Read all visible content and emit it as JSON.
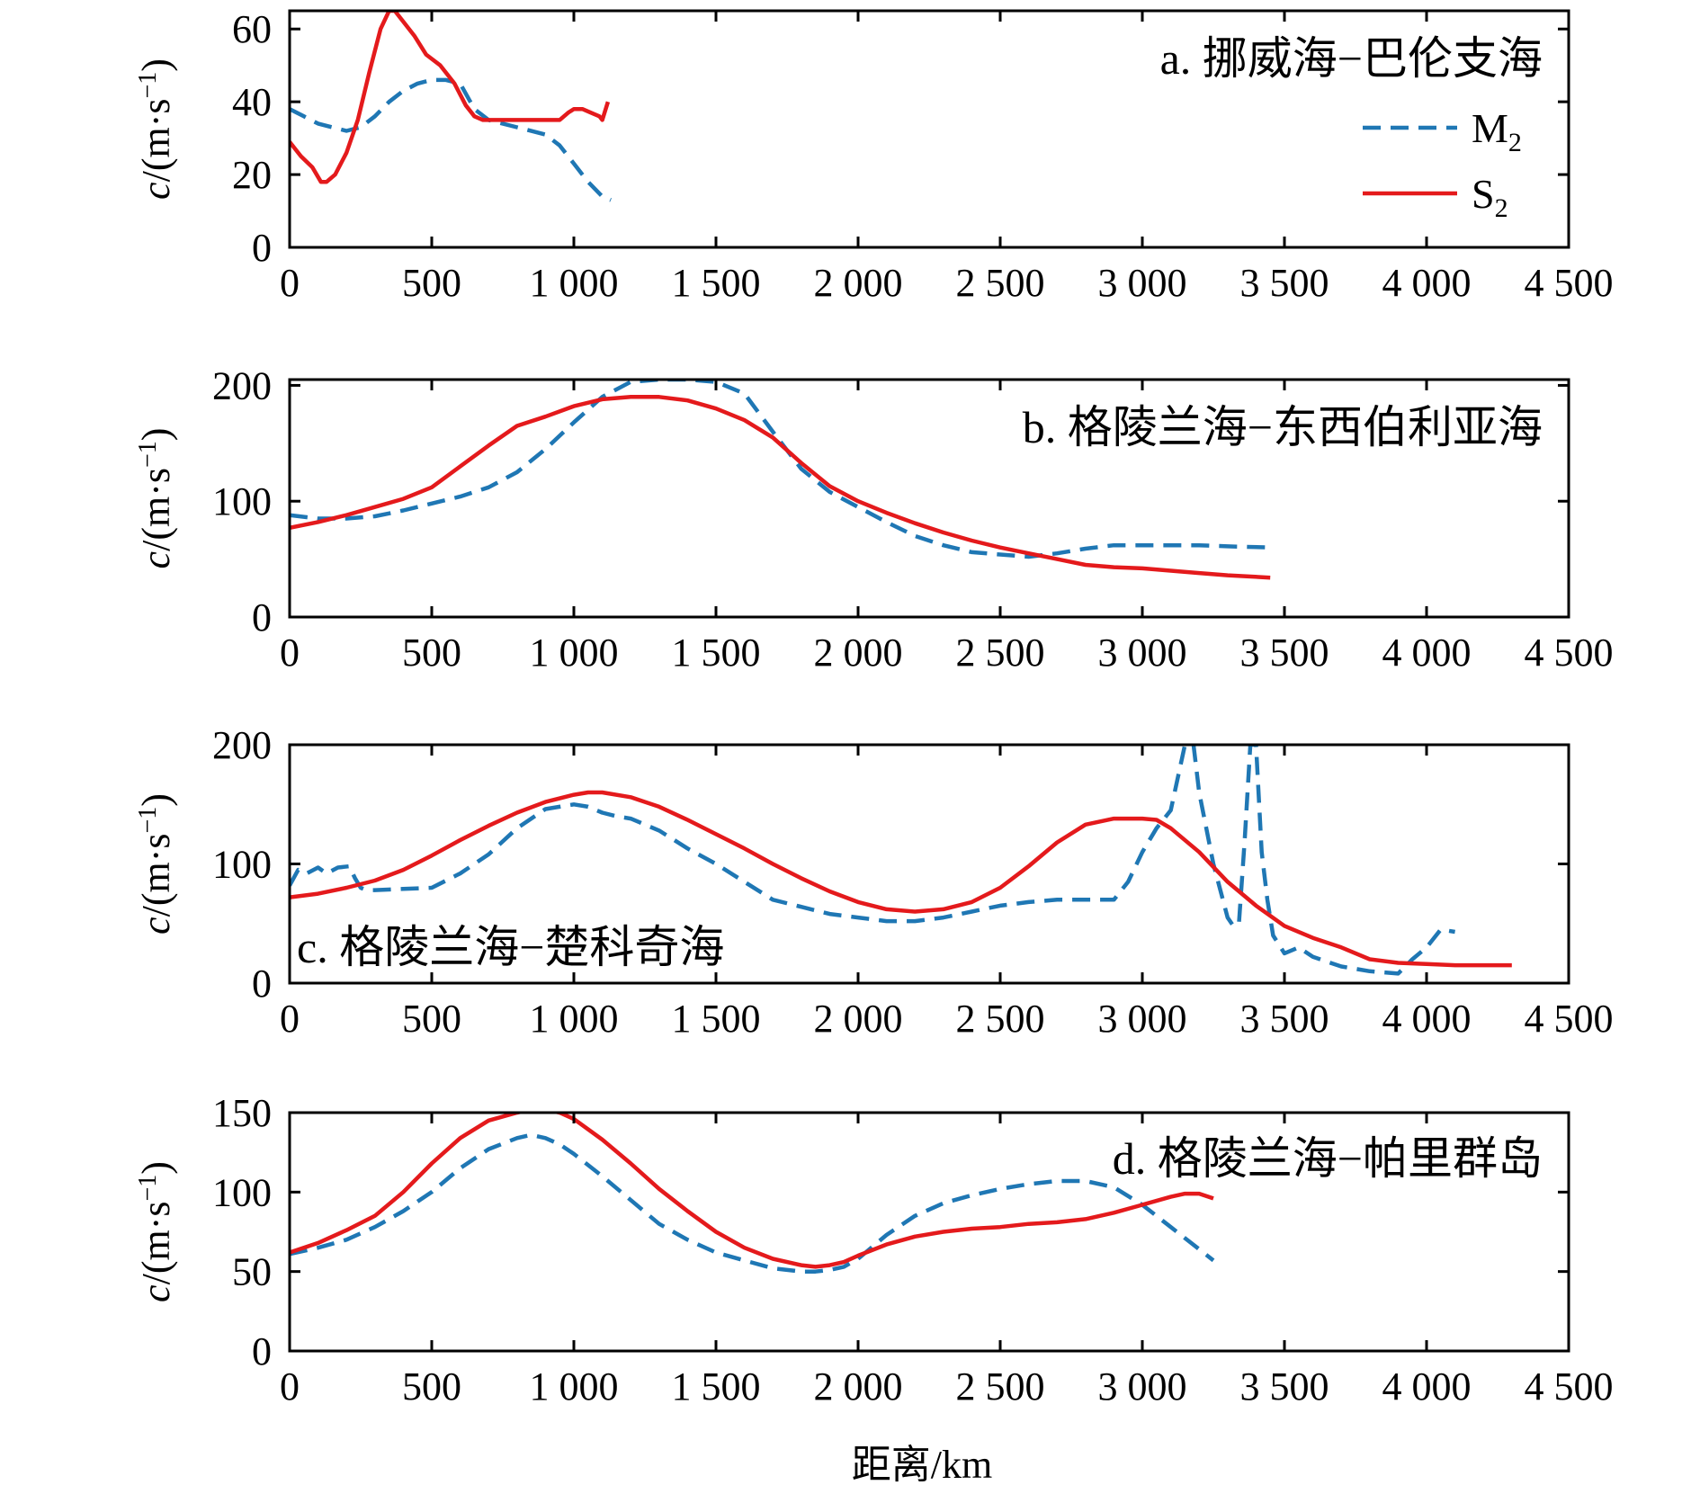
{
  "legend": {
    "placement": "top-right of panel a",
    "entries": [
      {
        "id": "M2",
        "base": "M",
        "sub": "2",
        "color": "#1f77b4",
        "dash": "dashed"
      },
      {
        "id": "S2",
        "base": "S",
        "sub": "2",
        "color": "#e41a1c",
        "dash": "solid"
      }
    ]
  },
  "shared": {
    "ylabel_italic": "c",
    "ylabel_text": "/(m·s",
    "ylabel_sup": "−1",
    "ylabel_close": ")",
    "xlabel": "距离/km"
  },
  "chart_data": [
    {
      "type": "line",
      "title": "a. 挪威海−巴伦支海",
      "xlim": [
        0,
        4500
      ],
      "ylim": [
        0,
        65
      ],
      "xticks": [
        0,
        500,
        1000,
        1500,
        2000,
        2500,
        3000,
        3500,
        4000,
        4500
      ],
      "xtick_labels": [
        "0",
        "500",
        "1 000",
        "1 500",
        "2 000",
        "2 500",
        "3 000",
        "3 500",
        "4 000",
        "4 500"
      ],
      "yticks": [
        0,
        20,
        40,
        60
      ],
      "ytick_labels": [
        "0",
        "20",
        "40",
        "60"
      ],
      "series": [
        {
          "name": "M2",
          "x": [
            0,
            50,
            100,
            150,
            200,
            250,
            300,
            350,
            400,
            450,
            500,
            550,
            600,
            650,
            700,
            800,
            900,
            950,
            1000,
            1050,
            1100,
            1130
          ],
          "y": [
            38,
            36,
            34,
            33,
            32,
            33,
            36,
            40,
            43,
            45,
            46,
            46,
            45,
            38,
            35,
            33,
            31,
            28,
            23,
            18,
            14,
            13
          ]
        },
        {
          "name": "S2",
          "x": [
            0,
            40,
            80,
            110,
            130,
            160,
            200,
            240,
            280,
            320,
            350,
            370,
            400,
            440,
            480,
            530,
            580,
            620,
            650,
            680,
            720,
            800,
            900,
            950,
            980,
            1000,
            1030,
            1060,
            1090,
            1100,
            1120
          ],
          "y": [
            29,
            25,
            22,
            18,
            18,
            20,
            26,
            35,
            48,
            60,
            65,
            65,
            62,
            58,
            53,
            50,
            45,
            39,
            36,
            35,
            35,
            35,
            35,
            35,
            37,
            38,
            38,
            37,
            36,
            35,
            40
          ]
        }
      ]
    },
    {
      "type": "line",
      "title": "b. 格陵兰海−东西伯利亚海",
      "xlim": [
        0,
        4500
      ],
      "ylim": [
        0,
        205
      ],
      "xticks": [
        0,
        500,
        1000,
        1500,
        2000,
        2500,
        3000,
        3500,
        4000,
        4500
      ],
      "xtick_labels": [
        "0",
        "500",
        "1 000",
        "1 500",
        "2 000",
        "2 500",
        "3 000",
        "3 500",
        "4 000",
        "4 500"
      ],
      "yticks": [
        0,
        100,
        200
      ],
      "ytick_labels": [
        "0",
        "100",
        "200"
      ],
      "series": [
        {
          "name": "M2",
          "x": [
            0,
            100,
            200,
            300,
            400,
            500,
            600,
            700,
            800,
            900,
            1000,
            1100,
            1200,
            1300,
            1400,
            1500,
            1600,
            1700,
            1800,
            1900,
            2000,
            2100,
            2200,
            2300,
            2400,
            2500,
            2600,
            2700,
            2800,
            2900,
            3000,
            3100,
            3200,
            3300,
            3450
          ],
          "y": [
            88,
            85,
            85,
            87,
            92,
            98,
            104,
            112,
            125,
            145,
            168,
            190,
            203,
            205,
            205,
            203,
            193,
            160,
            128,
            108,
            95,
            82,
            70,
            62,
            56,
            54,
            52,
            55,
            59,
            62,
            62,
            62,
            62,
            61,
            60
          ]
        },
        {
          "name": "S2",
          "x": [
            0,
            100,
            200,
            300,
            400,
            500,
            600,
            700,
            800,
            900,
            1000,
            1100,
            1200,
            1300,
            1400,
            1500,
            1600,
            1700,
            1800,
            1900,
            2000,
            2100,
            2200,
            2300,
            2400,
            2500,
            2600,
            2700,
            2800,
            2900,
            3000,
            3100,
            3200,
            3300,
            3450
          ],
          "y": [
            77,
            82,
            88,
            95,
            102,
            112,
            130,
            148,
            165,
            173,
            182,
            188,
            190,
            190,
            187,
            180,
            170,
            155,
            133,
            113,
            100,
            90,
            81,
            73,
            66,
            60,
            55,
            50,
            45,
            43,
            42,
            40,
            38,
            36,
            34
          ]
        }
      ]
    },
    {
      "type": "line",
      "title": "c. 格陵兰海−楚科奇海",
      "xlim": [
        0,
        4500
      ],
      "ylim": [
        0,
        200
      ],
      "xticks": [
        0,
        500,
        1000,
        1500,
        2000,
        2500,
        3000,
        3500,
        4000,
        4500
      ],
      "xtick_labels": [
        "0",
        "500",
        "1 000",
        "1 500",
        "2 000",
        "2 500",
        "3 000",
        "3 500",
        "4 000",
        "4 500"
      ],
      "yticks": [
        0,
        100,
        200
      ],
      "ytick_labels": [
        "0",
        "100",
        "200"
      ],
      "series": [
        {
          "name": "M2",
          "x": [
            0,
            30,
            60,
            100,
            130,
            170,
            210,
            230,
            250,
            270,
            300,
            400,
            500,
            600,
            700,
            800,
            900,
            950,
            1000,
            1050,
            1100,
            1150,
            1200,
            1300,
            1400,
            1500,
            1600,
            1700,
            1800,
            1900,
            2000,
            2100,
            2200,
            2300,
            2400,
            2500,
            2600,
            2700,
            2800,
            2900,
            2950,
            3000,
            3050,
            3100,
            3150,
            3180,
            3200,
            3250,
            3300,
            3320,
            3340,
            3360,
            3380,
            3400,
            3420,
            3440,
            3460,
            3500,
            3550,
            3600,
            3650,
            3700,
            3800,
            3900,
            3950,
            4000,
            4050,
            4100
          ],
          "y": [
            82,
            95,
            92,
            97,
            92,
            97,
            98,
            88,
            80,
            78,
            78,
            79,
            80,
            92,
            108,
            130,
            146,
            148,
            150,
            148,
            143,
            140,
            138,
            128,
            113,
            100,
            85,
            70,
            64,
            58,
            55,
            52,
            52,
            55,
            60,
            65,
            68,
            70,
            70,
            70,
            85,
            110,
            130,
            145,
            200,
            200,
            160,
            100,
            55,
            48,
            50,
            120,
            200,
            200,
            110,
            70,
            40,
            25,
            30,
            22,
            18,
            14,
            10,
            8,
            20,
            30,
            45,
            43
          ]
        },
        {
          "name": "S2",
          "x": [
            0,
            100,
            200,
            300,
            400,
            500,
            600,
            700,
            800,
            900,
            1000,
            1050,
            1100,
            1200,
            1300,
            1400,
            1500,
            1600,
            1700,
            1800,
            1900,
            2000,
            2100,
            2200,
            2300,
            2400,
            2500,
            2600,
            2700,
            2800,
            2900,
            3000,
            3050,
            3100,
            3200,
            3300,
            3400,
            3500,
            3600,
            3700,
            3800,
            3900,
            4000,
            4100,
            4200,
            4300
          ],
          "y": [
            72,
            75,
            80,
            86,
            95,
            107,
            120,
            132,
            143,
            152,
            158,
            160,
            160,
            156,
            148,
            137,
            125,
            113,
            100,
            88,
            77,
            68,
            62,
            60,
            62,
            68,
            80,
            98,
            118,
            133,
            138,
            138,
            137,
            130,
            110,
            85,
            65,
            48,
            38,
            30,
            20,
            17,
            16,
            15,
            15,
            15
          ]
        }
      ]
    },
    {
      "type": "line",
      "title": "d. 格陵兰海−帕里群岛",
      "xlim": [
        0,
        4500
      ],
      "ylim": [
        0,
        150
      ],
      "xticks": [
        0,
        500,
        1000,
        1500,
        2000,
        2500,
        3000,
        3500,
        4000,
        4500
      ],
      "xtick_labels": [
        "0",
        "500",
        "1 000",
        "1 500",
        "2 000",
        "2 500",
        "3 000",
        "3 500",
        "4 000",
        "4 500"
      ],
      "yticks": [
        0,
        50,
        100,
        150
      ],
      "ytick_labels": [
        "0",
        "50",
        "100",
        "150"
      ],
      "series": [
        {
          "name": "M2",
          "x": [
            0,
            100,
            200,
            300,
            400,
            500,
            600,
            700,
            800,
            850,
            900,
            950,
            1000,
            1100,
            1200,
            1300,
            1400,
            1500,
            1600,
            1700,
            1800,
            1850,
            1900,
            1950,
            2000,
            2100,
            2200,
            2300,
            2400,
            2500,
            2600,
            2700,
            2800,
            2900,
            3000,
            3100,
            3200,
            3250
          ],
          "y": [
            61,
            65,
            70,
            78,
            88,
            100,
            115,
            127,
            134,
            136,
            134,
            130,
            124,
            110,
            95,
            80,
            70,
            62,
            57,
            52,
            50,
            50,
            51,
            53,
            58,
            73,
            85,
            93,
            98,
            102,
            105,
            107,
            107,
            103,
            92,
            78,
            64,
            57
          ]
        },
        {
          "name": "S2",
          "x": [
            0,
            100,
            200,
            300,
            400,
            500,
            600,
            700,
            800,
            850,
            900,
            950,
            1000,
            1100,
            1200,
            1300,
            1400,
            1500,
            1600,
            1700,
            1800,
            1850,
            1900,
            1950,
            2000,
            2100,
            2200,
            2300,
            2400,
            2500,
            2600,
            2700,
            2800,
            2900,
            3000,
            3100,
            3150,
            3200,
            3250
          ],
          "y": [
            62,
            68,
            76,
            85,
            100,
            118,
            134,
            145,
            150,
            152,
            152,
            150,
            146,
            133,
            118,
            102,
            88,
            75,
            65,
            58,
            54,
            53,
            54,
            56,
            60,
            67,
            72,
            75,
            77,
            78,
            80,
            81,
            83,
            87,
            92,
            97,
            99,
            99,
            96
          ]
        }
      ]
    }
  ]
}
